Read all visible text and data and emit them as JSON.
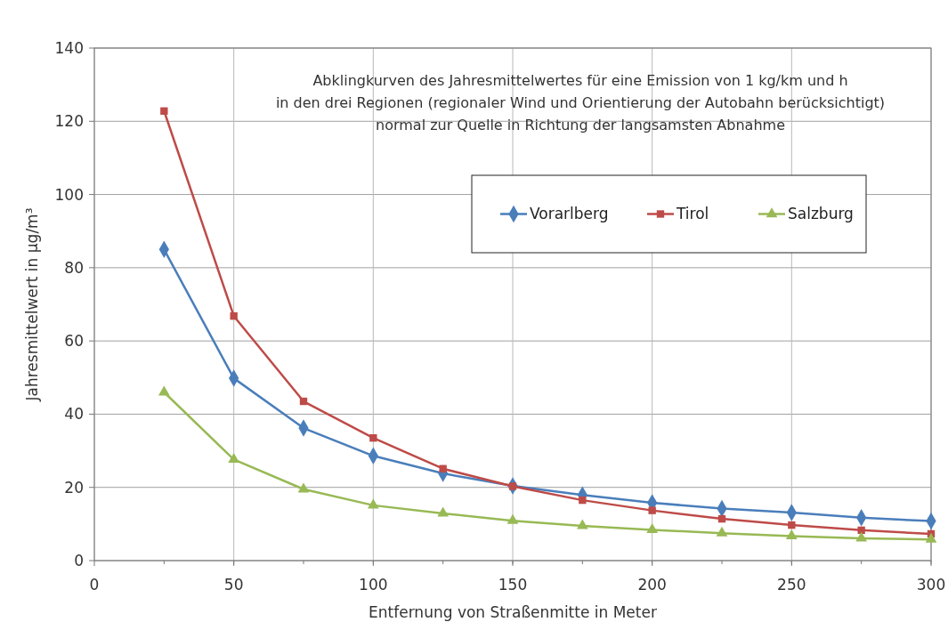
{
  "chart_data": {
    "type": "line",
    "title": "Abklingkurven des Jahresmittelwertes für eine Emission von 1 kg/km und h\nin den drei Regionen (regionaler Wind und Orientierung der Autobahn berücksichtigt)\nnormal zur Quelle in Richtung der langsamsten Abnahme",
    "xlabel": "Entfernung von Straßenmitte in Meter",
    "ylabel": "Jahresmittelwert in µg/m³",
    "x": [
      25,
      50,
      75,
      100,
      125,
      150,
      175,
      200,
      225,
      250,
      275,
      300
    ],
    "series": [
      {
        "name": "Vorarlberg",
        "color": "#4a7ebb",
        "marker": "diamond",
        "values": [
          85,
          49.8,
          36.2,
          28.6,
          23.8,
          20.4,
          17.9,
          15.8,
          14.2,
          13.1,
          11.7,
          10.8
        ]
      },
      {
        "name": "Tirol",
        "color": "#be4b48",
        "marker": "square",
        "values": [
          122.8,
          66.8,
          43.5,
          33.5,
          25.1,
          20.3,
          16.5,
          13.7,
          11.4,
          9.7,
          8.3,
          7.3
        ]
      },
      {
        "name": "Salzburg",
        "color": "#98b954",
        "marker": "triangle",
        "values": [
          46,
          27.6,
          19.5,
          15.1,
          12.9,
          10.9,
          9.5,
          8.4,
          7.5,
          6.7,
          6.1,
          5.8
        ]
      }
    ],
    "xlim": [
      0,
      300
    ],
    "xticks": [
      0,
      50,
      100,
      150,
      200,
      250,
      300
    ],
    "ylim": [
      0,
      140
    ],
    "yticks": [
      0,
      20,
      40,
      60,
      80,
      100,
      120,
      140
    ],
    "grid": true,
    "legend": "top right"
  }
}
